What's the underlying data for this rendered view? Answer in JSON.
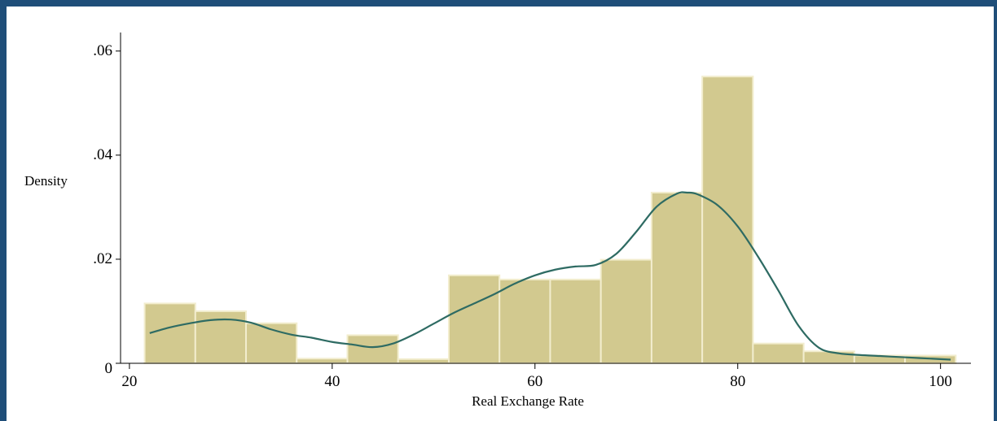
{
  "chart_data": {
    "type": "bar",
    "bin_width": 5,
    "bins": [
      {
        "start": 21.5,
        "end": 26.5,
        "density": 0.0115
      },
      {
        "start": 26.5,
        "end": 31.5,
        "density": 0.01
      },
      {
        "start": 31.5,
        "end": 36.5,
        "density": 0.0077
      },
      {
        "start": 36.5,
        "end": 41.5,
        "density": 0.0009
      },
      {
        "start": 41.5,
        "end": 46.5,
        "density": 0.0054
      },
      {
        "start": 46.5,
        "end": 51.5,
        "density": 0.0008
      },
      {
        "start": 51.5,
        "end": 56.5,
        "density": 0.0169
      },
      {
        "start": 56.5,
        "end": 61.5,
        "density": 0.0161
      },
      {
        "start": 61.5,
        "end": 66.5,
        "density": 0.0161
      },
      {
        "start": 66.5,
        "end": 71.5,
        "density": 0.0199
      },
      {
        "start": 71.5,
        "end": 76.5,
        "density": 0.0328
      },
      {
        "start": 76.5,
        "end": 81.5,
        "density": 0.0551
      },
      {
        "start": 81.5,
        "end": 86.5,
        "density": 0.0038
      },
      {
        "start": 86.5,
        "end": 91.5,
        "density": 0.0023
      },
      {
        "start": 91.5,
        "end": 96.5,
        "density": 0.0015
      },
      {
        "start": 96.5,
        "end": 101.5,
        "density": 0.0015
      }
    ],
    "kernel_density": {
      "x": [
        22,
        24,
        26,
        28,
        30,
        32,
        34,
        36,
        38,
        40,
        42,
        44,
        46,
        48,
        50,
        52,
        54,
        56,
        58,
        60,
        62,
        64,
        66,
        68,
        70,
        72,
        74,
        75,
        76,
        78,
        80,
        82,
        84,
        86,
        88,
        90,
        92,
        94,
        96,
        98,
        100,
        101
      ],
      "y": [
        0.0058,
        0.0069,
        0.0077,
        0.0083,
        0.0084,
        0.0078,
        0.0065,
        0.0055,
        0.0049,
        0.0041,
        0.0036,
        0.0031,
        0.0038,
        0.0055,
        0.0076,
        0.0097,
        0.0115,
        0.0133,
        0.0153,
        0.0169,
        0.018,
        0.0186,
        0.0189,
        0.021,
        0.0253,
        0.0301,
        0.0326,
        0.0328,
        0.0325,
        0.0304,
        0.0263,
        0.0205,
        0.014,
        0.0072,
        0.003,
        0.0019,
        0.0016,
        0.0014,
        0.0012,
        0.001,
        0.0008,
        0.0007
      ]
    },
    "xlabel": "Real Exchange Rate",
    "ylabel": "Density",
    "xlim": [
      18,
      103
    ],
    "ylim": [
      0,
      0.062
    ],
    "x_ticks": [
      20,
      40,
      60,
      80,
      100
    ],
    "x_tick_labels": [
      "20",
      "40",
      "60",
      "80",
      "100"
    ],
    "y_ticks": [
      0,
      0.02,
      0.04,
      0.06
    ],
    "y_tick_labels": [
      "0",
      ".02",
      ".04",
      ".06"
    ],
    "grid": false,
    "colors": {
      "bar_fill": "#d2c98f",
      "bar_edge": "#f2edce",
      "density_line": "#2e6b63",
      "frame_border": "#1f4e79",
      "axis": "#000000"
    }
  }
}
